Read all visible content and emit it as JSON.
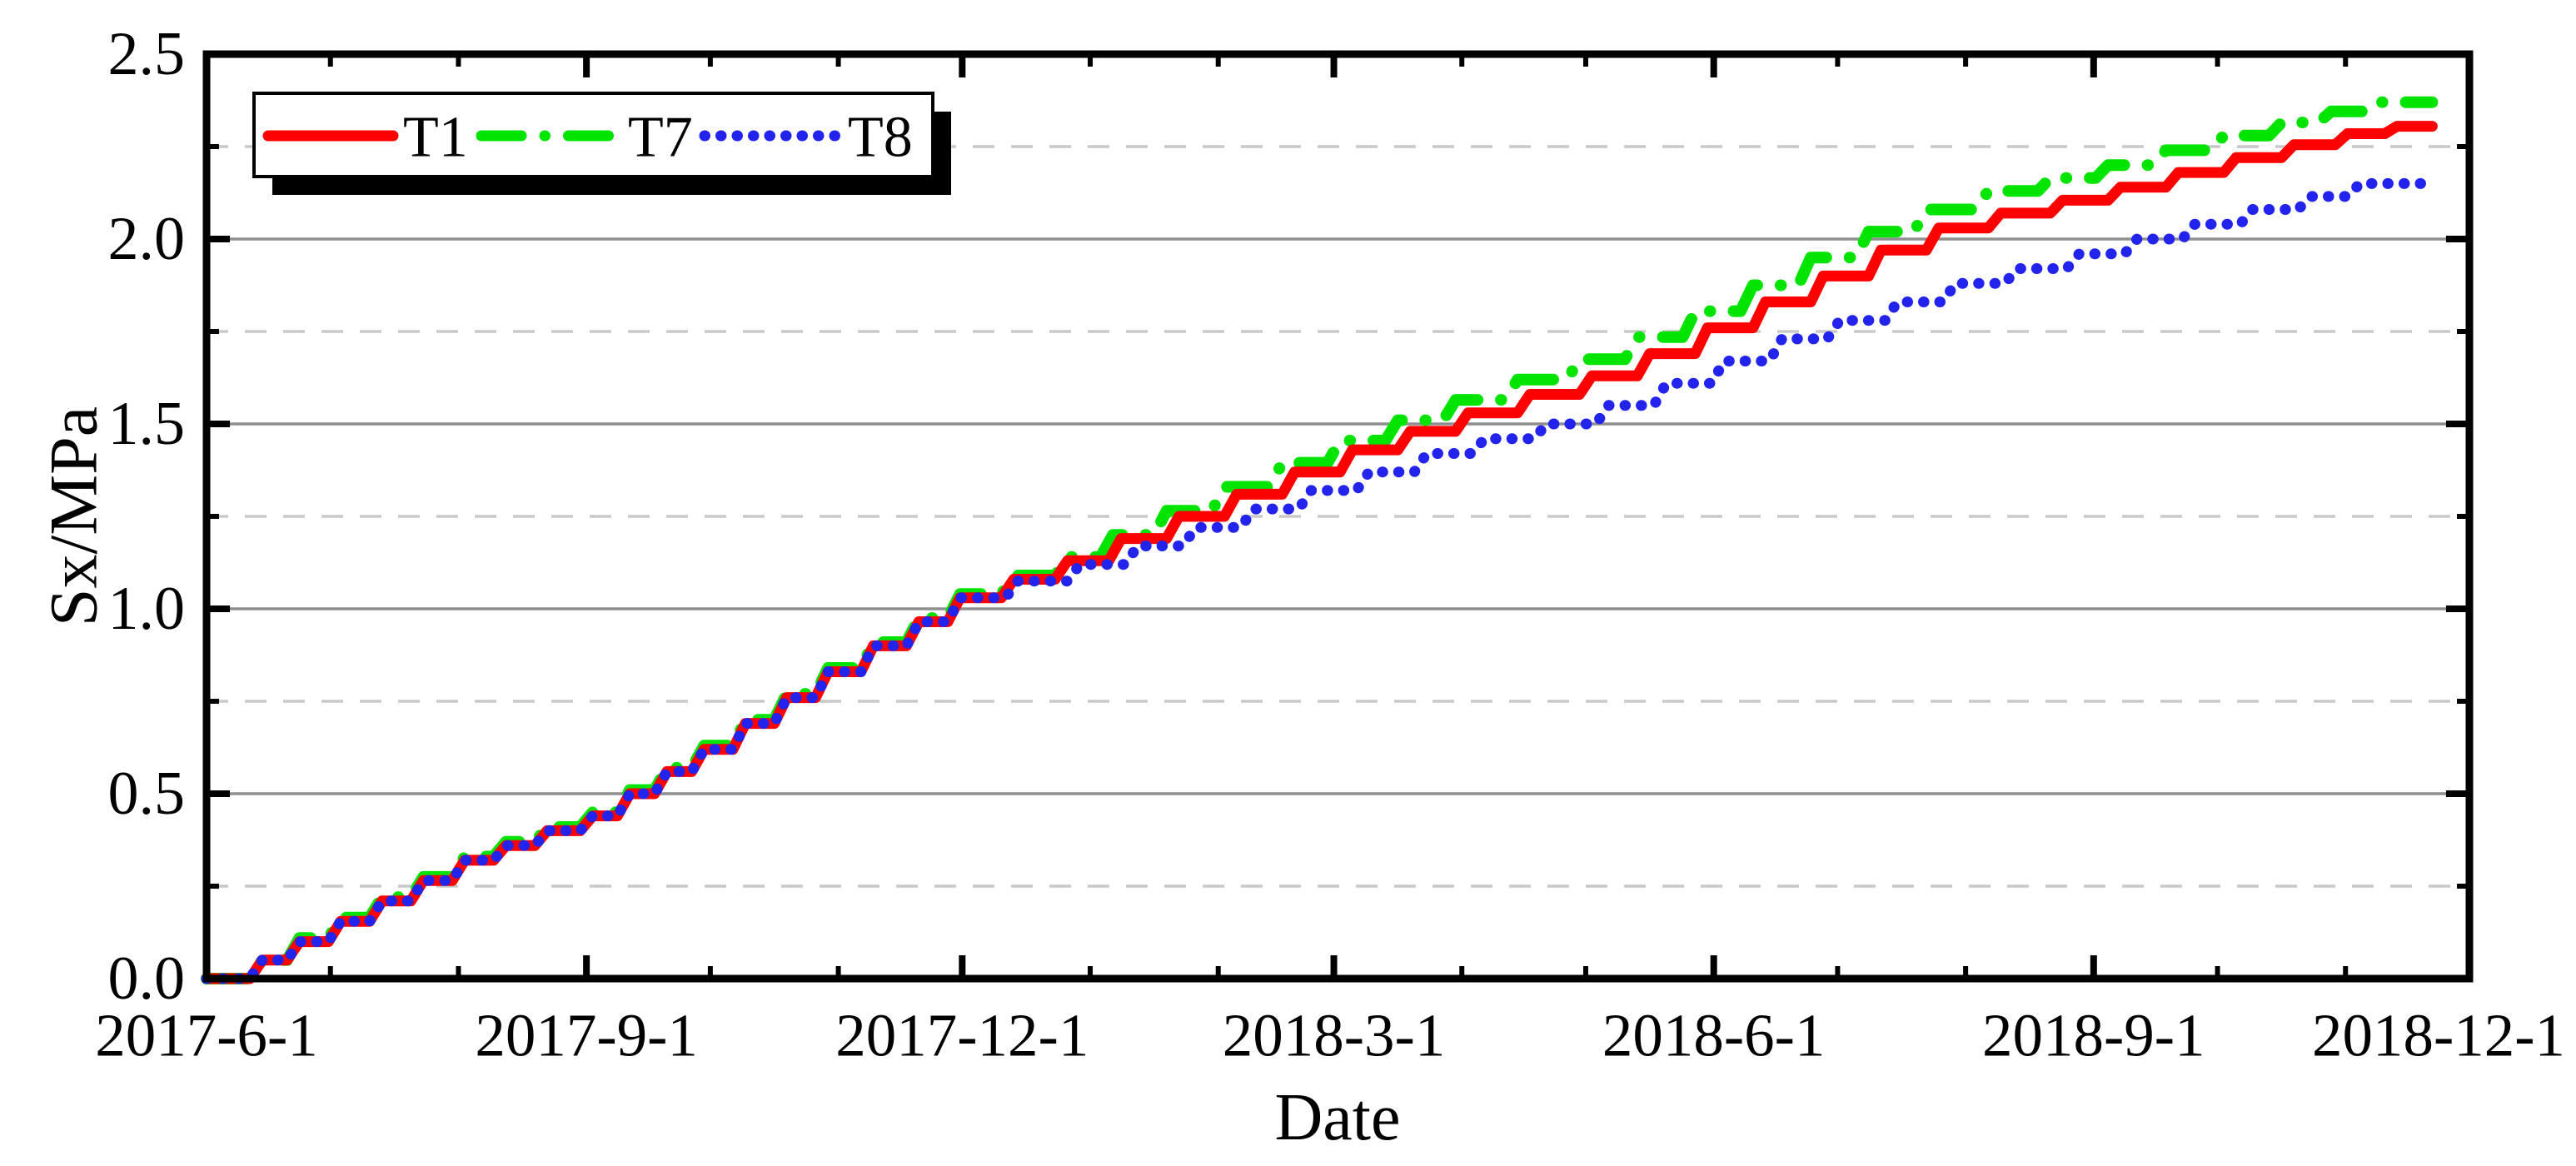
{
  "legend": {
    "items": [
      {
        "label": "T1",
        "color": "#ff0000",
        "style": "solid"
      },
      {
        "label": "T7",
        "color": "#00e400",
        "style": "dash-dot"
      },
      {
        "label": "T8",
        "color": "#2323ee",
        "style": "dot"
      }
    ]
  },
  "axes": {
    "x": {
      "title": "Date",
      "tick_labels": [
        "2017-6-1",
        "2017-9-1",
        "2017-12-1",
        "2018-3-1",
        "2018-6-1",
        "2018-9-1",
        "2018-12-1"
      ],
      "tick_days": [
        0,
        92,
        183,
        273,
        365,
        457,
        548
      ],
      "minor_tick_days": [
        30,
        61,
        122,
        153,
        214,
        245,
        304,
        334,
        395,
        426,
        487,
        518
      ],
      "range_days": [
        0,
        548
      ]
    },
    "y": {
      "title": "Sx/MPa",
      "tick_labels": [
        "0.0",
        "0.5",
        "1.0",
        "1.5",
        "2.0",
        "2.5"
      ],
      "tick_values": [
        0,
        0.5,
        1.0,
        1.5,
        2.0,
        2.5
      ],
      "minor_tick_values": [
        0.25,
        0.75,
        1.25,
        1.75,
        2.25
      ],
      "range": [
        0,
        2.5
      ]
    }
  },
  "grid": {
    "major_color": "#8f8f8f",
    "minor_color": "#c9c9c9",
    "major_style": "solid",
    "minor_style": "dashed"
  },
  "chart_data": {
    "type": "line",
    "title": "",
    "xlabel": "Date",
    "ylabel": "Sx/MPa",
    "x_unit": "days since 2017-6-1",
    "xlim_days": [
      0,
      548
    ],
    "ylim": [
      0,
      2.5
    ],
    "legend_position": "top-left",
    "grid": "horizontal only",
    "series": [
      {
        "name": "T7",
        "color": "#00e400",
        "style": "dash-dot",
        "width": 14,
        "end_day": 539,
        "steps": [
          [
            0,
            0
          ],
          [
            12,
            0.05
          ],
          [
            21,
            0.11
          ],
          [
            31,
            0.165
          ],
          [
            41,
            0.22
          ],
          [
            51,
            0.275
          ],
          [
            61,
            0.33
          ],
          [
            71,
            0.37
          ],
          [
            81,
            0.41
          ],
          [
            92,
            0.45
          ],
          [
            101,
            0.51
          ],
          [
            110,
            0.57
          ],
          [
            119,
            0.63
          ],
          [
            129,
            0.7
          ],
          [
            139,
            0.77
          ],
          [
            149,
            0.84
          ],
          [
            160,
            0.91
          ],
          [
            171,
            0.975
          ],
          [
            181,
            1.04
          ],
          [
            194,
            1.09
          ],
          [
            207,
            1.14
          ],
          [
            218,
            1.2
          ],
          [
            231,
            1.265
          ],
          [
            245,
            1.33
          ],
          [
            259,
            1.395
          ],
          [
            273,
            1.455
          ],
          [
            287,
            1.51
          ],
          [
            301,
            1.565
          ],
          [
            316,
            1.62
          ],
          [
            331,
            1.675
          ],
          [
            345,
            1.735
          ],
          [
            359,
            1.805
          ],
          [
            373,
            1.875
          ],
          [
            387,
            1.95
          ],
          [
            401,
            2.02
          ],
          [
            415,
            2.08
          ],
          [
            430,
            2.13
          ],
          [
            445,
            2.165
          ],
          [
            459,
            2.2
          ],
          [
            473,
            2.24
          ],
          [
            487,
            2.28
          ],
          [
            501,
            2.315
          ],
          [
            513,
            2.345
          ],
          [
            525,
            2.37
          ]
        ]
      },
      {
        "name": "T1",
        "color": "#ff0000",
        "style": "solid",
        "width": 13,
        "end_day": 539,
        "steps": [
          [
            0,
            0
          ],
          [
            12,
            0.05
          ],
          [
            21,
            0.1
          ],
          [
            31,
            0.155
          ],
          [
            41,
            0.21
          ],
          [
            51,
            0.265
          ],
          [
            61,
            0.32
          ],
          [
            71,
            0.36
          ],
          [
            81,
            0.4
          ],
          [
            92,
            0.44
          ],
          [
            101,
            0.5
          ],
          [
            110,
            0.56
          ],
          [
            119,
            0.62
          ],
          [
            129,
            0.69
          ],
          [
            139,
            0.76
          ],
          [
            149,
            0.83
          ],
          [
            160,
            0.9
          ],
          [
            171,
            0.965
          ],
          [
            181,
            1.03
          ],
          [
            194,
            1.08
          ],
          [
            207,
            1.13
          ],
          [
            220,
            1.19
          ],
          [
            234,
            1.25
          ],
          [
            248,
            1.31
          ],
          [
            262,
            1.37
          ],
          [
            276,
            1.43
          ],
          [
            290,
            1.48
          ],
          [
            304,
            1.53
          ],
          [
            319,
            1.58
          ],
          [
            334,
            1.63
          ],
          [
            348,
            1.69
          ],
          [
            362,
            1.76
          ],
          [
            376,
            1.83
          ],
          [
            390,
            1.9
          ],
          [
            404,
            1.97
          ],
          [
            418,
            2.03
          ],
          [
            433,
            2.07
          ],
          [
            448,
            2.105
          ],
          [
            462,
            2.14
          ],
          [
            476,
            2.18
          ],
          [
            490,
            2.22
          ],
          [
            504,
            2.255
          ],
          [
            517,
            2.285
          ],
          [
            529,
            2.305
          ]
        ]
      },
      {
        "name": "T8",
        "color": "#2323ee",
        "style": "dot",
        "width": 13,
        "end_day": 539,
        "steps": [
          [
            0,
            0
          ],
          [
            12,
            0.05
          ],
          [
            21,
            0.1
          ],
          [
            31,
            0.155
          ],
          [
            41,
            0.21
          ],
          [
            51,
            0.265
          ],
          [
            61,
            0.32
          ],
          [
            71,
            0.36
          ],
          [
            81,
            0.4
          ],
          [
            92,
            0.44
          ],
          [
            101,
            0.5
          ],
          [
            110,
            0.56
          ],
          [
            119,
            0.62
          ],
          [
            129,
            0.69
          ],
          [
            139,
            0.76
          ],
          [
            149,
            0.83
          ],
          [
            160,
            0.9
          ],
          [
            171,
            0.965
          ],
          [
            181,
            1.03
          ],
          [
            195,
            1.075
          ],
          [
            210,
            1.12
          ],
          [
            224,
            1.17
          ],
          [
            238,
            1.22
          ],
          [
            252,
            1.27
          ],
          [
            266,
            1.32
          ],
          [
            280,
            1.37
          ],
          [
            294,
            1.42
          ],
          [
            308,
            1.46
          ],
          [
            323,
            1.5
          ],
          [
            338,
            1.55
          ],
          [
            352,
            1.61
          ],
          [
            366,
            1.67
          ],
          [
            380,
            1.73
          ],
          [
            394,
            1.78
          ],
          [
            408,
            1.83
          ],
          [
            422,
            1.88
          ],
          [
            437,
            1.92
          ],
          [
            452,
            1.96
          ],
          [
            466,
            2.0
          ],
          [
            480,
            2.04
          ],
          [
            494,
            2.08
          ],
          [
            508,
            2.115
          ],
          [
            520,
            2.15
          ]
        ]
      }
    ]
  }
}
